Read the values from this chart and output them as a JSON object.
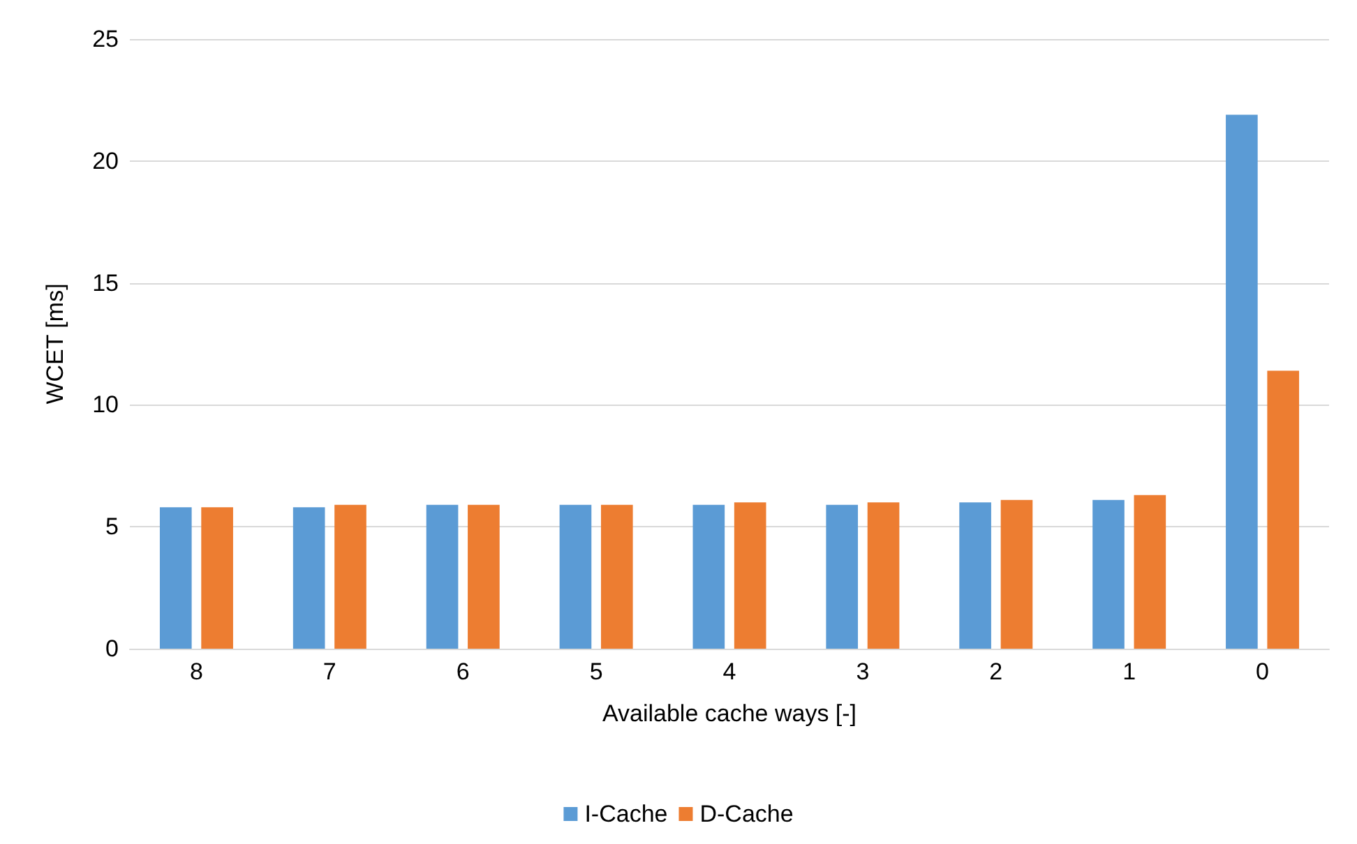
{
  "chart_data": {
    "type": "bar",
    "xlabel": "Available cache ways [-]",
    "ylabel": "WCET [ms]",
    "categories": [
      "8",
      "7",
      "6",
      "5",
      "4",
      "3",
      "2",
      "1",
      "0"
    ],
    "series": [
      {
        "name": "I-Cache",
        "color": "#5b9bd5",
        "values": [
          5.8,
          5.8,
          5.9,
          5.9,
          5.9,
          5.9,
          6.0,
          6.1,
          21.9
        ]
      },
      {
        "name": "D-Cache",
        "color": "#ed7d31",
        "values": [
          5.8,
          5.9,
          5.9,
          5.9,
          6.0,
          6.0,
          6.1,
          6.3,
          11.4
        ]
      }
    ],
    "ylim": [
      0,
      25
    ],
    "yticks": [
      0,
      5,
      10,
      15,
      20,
      25
    ],
    "grid": "y",
    "legend": "bottom"
  }
}
